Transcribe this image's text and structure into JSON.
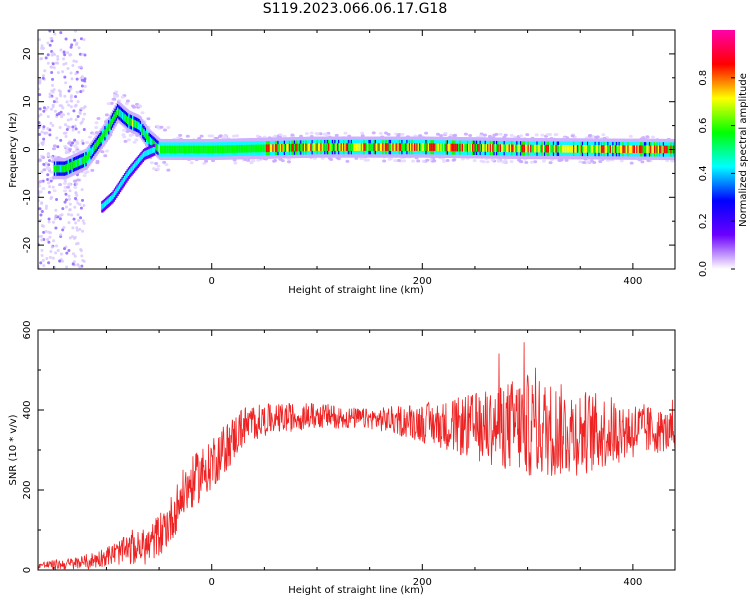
{
  "title": "S119.2023.066.06.17.G18",
  "chart_data": [
    {
      "type": "heatmap",
      "xlabel": "Height of straight line (km)",
      "ylabel": "Frequency (Hz)",
      "xlim": [
        -165,
        440
      ],
      "ylim": [
        -25,
        25
      ],
      "xticks": [
        0,
        200,
        400
      ],
      "yticks": [
        -20,
        -10,
        0,
        10,
        20
      ],
      "colorbar": {
        "label": "Normalized spectral amplitude",
        "range": [
          0,
          1
        ],
        "ticks": [
          "0.0",
          "0.2",
          "0.4",
          "0.6",
          "0.8"
        ],
        "colormap": [
          "#ffffff",
          "#6a00ff",
          "#0000ff",
          "#00ffff",
          "#00ff00",
          "#ffff00",
          "#ff0000",
          "#ff00aa"
        ]
      },
      "ridge": [
        {
          "x": -140,
          "y": -4
        },
        {
          "x": -130,
          "y": -3
        },
        {
          "x": -120,
          "y": -2
        },
        {
          "x": -110,
          "y": 1
        },
        {
          "x": -100,
          "y": 4
        },
        {
          "x": -90,
          "y": 8
        },
        {
          "x": -80,
          "y": 6
        },
        {
          "x": -70,
          "y": 5
        },
        {
          "x": -60,
          "y": 2
        },
        {
          "x": -50,
          "y": 0
        },
        {
          "x": 0,
          "y": 0
        },
        {
          "x": 100,
          "y": 0.5
        },
        {
          "x": 200,
          "y": 0.5
        },
        {
          "x": 300,
          "y": 0.2
        },
        {
          "x": 440,
          "y": 0
        }
      ],
      "mirror_branch": [
        {
          "x": -105,
          "y": -12
        },
        {
          "x": -95,
          "y": -10
        },
        {
          "x": -80,
          "y": -5
        },
        {
          "x": -65,
          "y": -1
        },
        {
          "x": -55,
          "y": 0
        }
      ]
    },
    {
      "type": "line",
      "xlabel": "Height of straight line (km)",
      "ylabel": "SNR (10 * v/v)",
      "xlim": [
        -165,
        440
      ],
      "ylim": [
        0,
        600
      ],
      "xticks": [
        0,
        200,
        400
      ],
      "yticks": [
        0,
        200,
        400,
        600
      ],
      "series": [
        {
          "color": "#ee2222",
          "x": [
            -165,
            -140,
            -120,
            -100,
            -80,
            -60,
            -40,
            -25,
            -10,
            0,
            15,
            30,
            50,
            70,
            90,
            110,
            130,
            150,
            170,
            190,
            210,
            230,
            250,
            270,
            290,
            300,
            310,
            330,
            350,
            370,
            390,
            410,
            440
          ],
          "y": [
            12,
            14,
            18,
            35,
            50,
            60,
            120,
            200,
            240,
            270,
            310,
            360,
            375,
            380,
            385,
            385,
            380,
            378,
            375,
            372,
            365,
            360,
            358,
            360,
            362,
            360,
            355,
            350,
            345,
            345,
            350,
            350,
            345
          ]
        }
      ],
      "noise_amplitude": [
        {
          "x": -165,
          "a": 8
        },
        {
          "x": -100,
          "a": 25
        },
        {
          "x": -40,
          "a": 60
        },
        {
          "x": 0,
          "a": 70
        },
        {
          "x": 50,
          "a": 40
        },
        {
          "x": 150,
          "a": 25
        },
        {
          "x": 220,
          "a": 60
        },
        {
          "x": 300,
          "a": 130
        },
        {
          "x": 350,
          "a": 110
        },
        {
          "x": 440,
          "a": 45
        }
      ]
    }
  ]
}
